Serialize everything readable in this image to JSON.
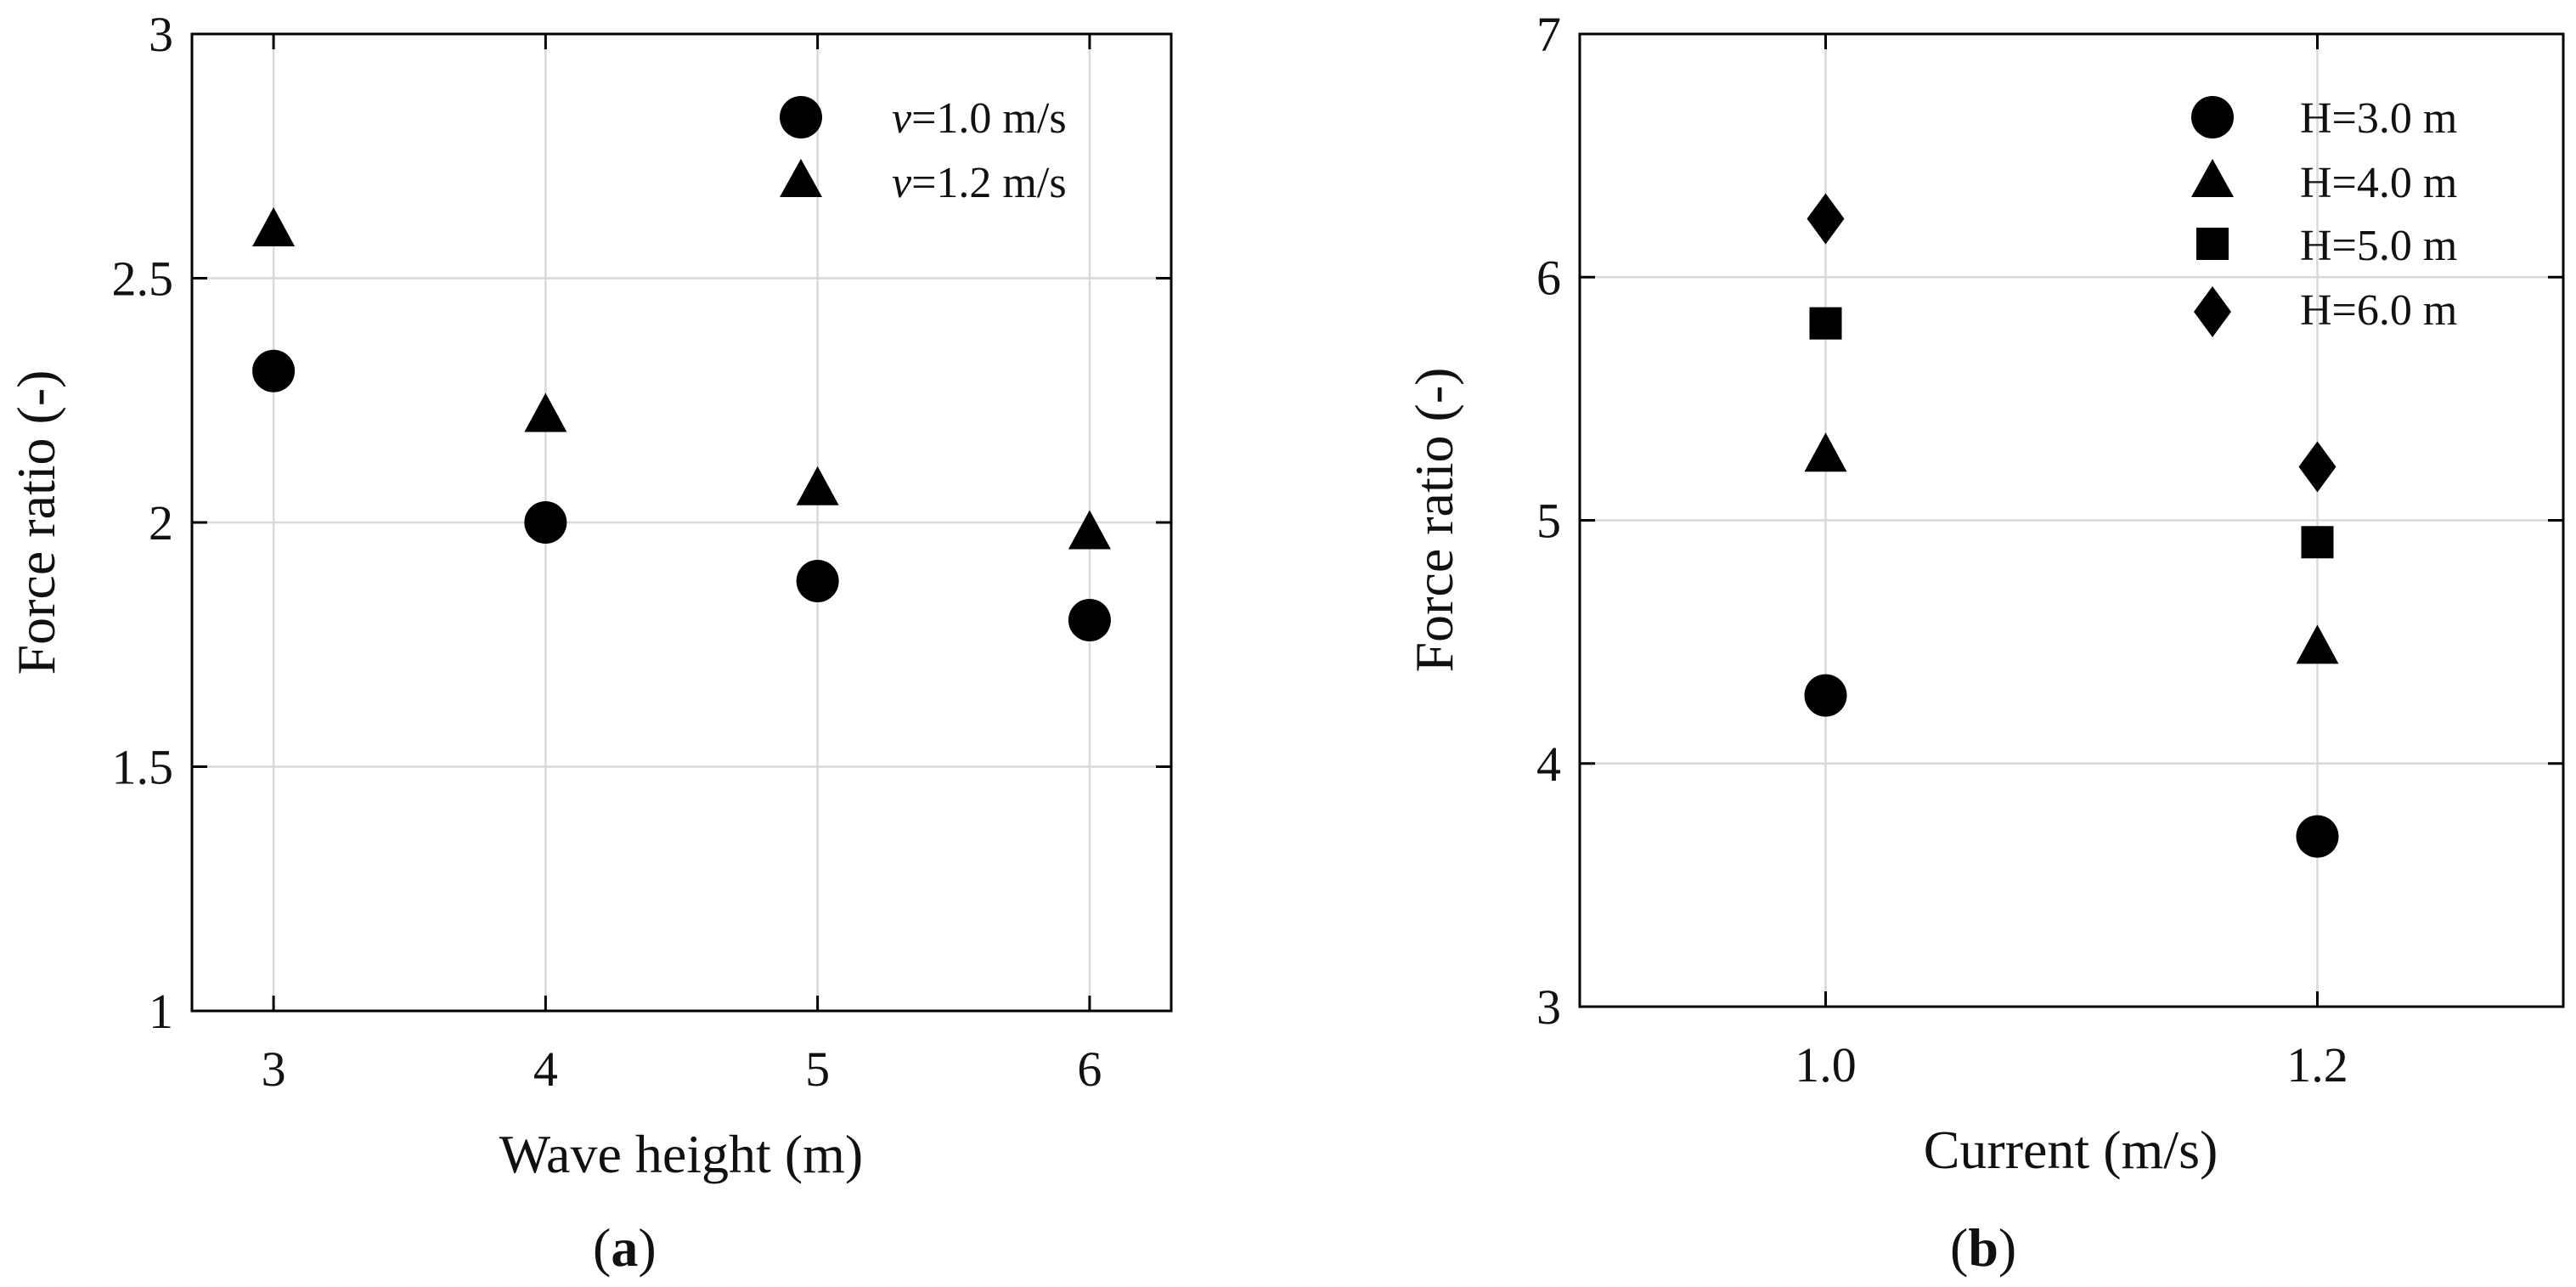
{
  "chart_data": [
    {
      "type": "scatter",
      "panel_label": "a",
      "xlabel": "Wave height (m)",
      "ylabel": "Force ratio (-)",
      "x": [
        3,
        4,
        5,
        6
      ],
      "xticks": [
        "3",
        "4",
        "5",
        "6"
      ],
      "xlim": [
        2.7,
        6.3
      ],
      "ylim": [
        1,
        3
      ],
      "yticks": [
        "1",
        "1.5",
        "2",
        "2.5",
        "3"
      ],
      "grid": true,
      "legend_position": "top-right",
      "series": [
        {
          "name": "v=1.0 m/s",
          "italic_prefix": "v",
          "label_rest": "=1.0 m/s",
          "marker": "circle",
          "values": [
            2.31,
            2.0,
            1.88,
            1.8
          ]
        },
        {
          "name": "v=1.2 m/s",
          "italic_prefix": "v",
          "label_rest": "=1.2 m/s",
          "marker": "triangle",
          "values": [
            2.6,
            2.22,
            2.07,
            1.98
          ]
        }
      ]
    },
    {
      "type": "scatter",
      "panel_label": "b",
      "xlabel": "Current (m/s)",
      "ylabel": "Force ratio (-)",
      "x": [
        1.0,
        1.2
      ],
      "xticks": [
        "1.0",
        "1.2"
      ],
      "xlim": [
        0.9,
        1.3
      ],
      "ylim": [
        3,
        7
      ],
      "yticks": [
        "3",
        "4",
        "5",
        "6",
        "7"
      ],
      "grid": true,
      "legend_position": "top-right",
      "series": [
        {
          "name": "H=3.0 m",
          "marker": "circle",
          "values": [
            4.28,
            3.7
          ]
        },
        {
          "name": "H=4.0 m",
          "marker": "triangle",
          "values": [
            5.27,
            4.48
          ]
        },
        {
          "name": "H=5.0 m",
          "marker": "square",
          "values": [
            5.81,
            4.91
          ]
        },
        {
          "name": "H=6.0 m",
          "marker": "diamond",
          "values": [
            6.24,
            5.22
          ]
        }
      ]
    }
  ]
}
